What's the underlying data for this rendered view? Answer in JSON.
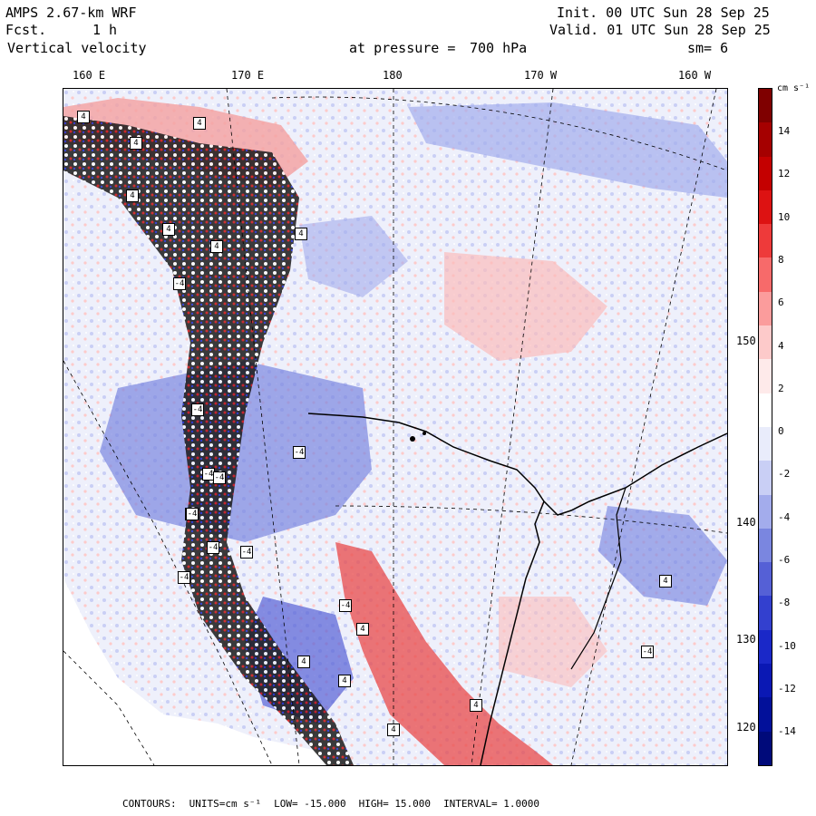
{
  "header": {
    "model": "AMPS 2.67-km WRF",
    "forecast_label": "Fcst.",
    "forecast_value": "1 h",
    "variable": "Vertical velocity",
    "init": "Init. 00 UTC Sun 28 Sep 25",
    "valid": "Valid. 01 UTC Sun 28 Sep 25",
    "pressure_label": "at pressure =",
    "pressure_value": "700 hPa",
    "smoothing": "sm= 6"
  },
  "longitude_labels": [
    "160 E",
    "170 E",
    "180",
    "170 W",
    "160 W"
  ],
  "latitude_labels": [
    "150 W",
    "140 W",
    "130 W",
    "120 W"
  ],
  "colorbar": {
    "units": "cm s⁻¹",
    "ticks": [
      "14",
      "12",
      "10",
      "8",
      "6",
      "4",
      "2",
      "0",
      "-2",
      "-4",
      "-6",
      "-8",
      "-10",
      "-12",
      "-14"
    ],
    "colors": [
      "#7f0000",
      "#a50000",
      "#c40000",
      "#dd1212",
      "#ee3a3a",
      "#f76a6a",
      "#fb9c9c",
      "#fdcaca",
      "#feeaea",
      "#ffffff",
      "#e9ecfb",
      "#c9cff5",
      "#a3acec",
      "#7a86e0",
      "#5560d6",
      "#3340cf",
      "#1a28c8",
      "#0a18b4",
      "#02109a",
      "#000a7a"
    ]
  },
  "contour_boxes": [
    "4",
    "4",
    "4",
    "4",
    "4",
    "4",
    "-4",
    "4",
    "-4",
    "-4",
    "-4",
    "4",
    "-4",
    "-4",
    "-4",
    "-4",
    "4",
    "4",
    "4",
    "4",
    "4",
    "4",
    "-4",
    "-4",
    "-4"
  ],
  "footer": {
    "contours": "CONTOURS:",
    "units": "UNITS=cm s⁻¹",
    "low": "LOW= -15.000",
    "high": "HIGH= 15.000",
    "interval": "INTERVAL= 1.0000"
  }
}
